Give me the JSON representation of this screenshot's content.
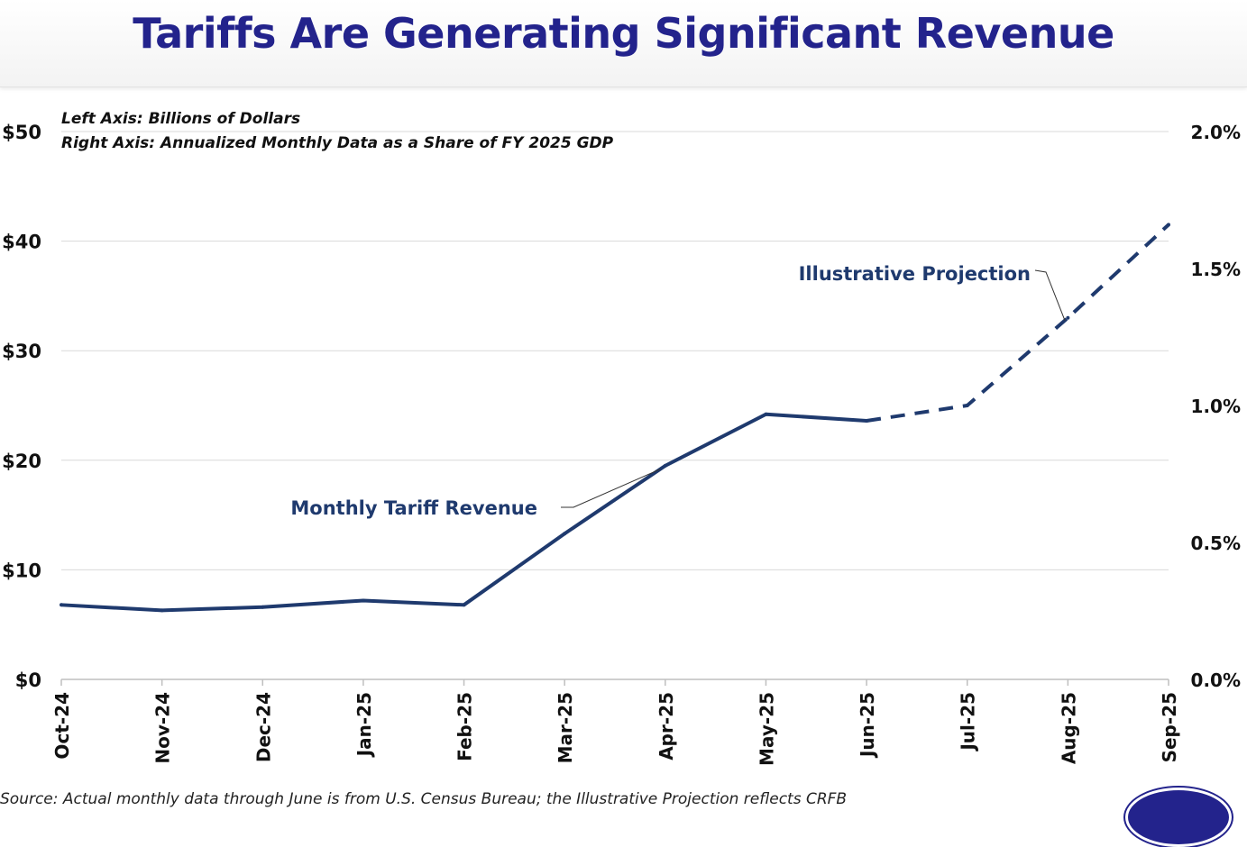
{
  "title": "Tariffs Are Generating Significant Revenue",
  "source_note": "Source: Actual monthly data through June is from U.S. Census Bureau; the Illustrative Projection reflects CRFB",
  "colors": {
    "title": "#23238c",
    "series": "#1f3a6e",
    "grid": "#d9d9d9",
    "axis_text": "#111111"
  },
  "chart_data": {
    "type": "line",
    "axis_notes": [
      "Left Axis: Billions of Dollars",
      "Right Axis: Annualized Monthly Data as a Share of FY 2025 GDP"
    ],
    "categories": [
      "Oct-24",
      "Nov-24",
      "Dec-24",
      "Jan-25",
      "Feb-25",
      "Mar-25",
      "Apr-25",
      "May-25",
      "Jun-25",
      "Jul-25",
      "Aug-25",
      "Sep-25"
    ],
    "y_left": {
      "range": [
        0,
        50
      ],
      "ticks": [
        0,
        10,
        20,
        30,
        40,
        50
      ],
      "tick_labels": [
        "$0",
        "$10",
        "$20",
        "$30",
        "$40",
        "$50"
      ]
    },
    "y_right": {
      "range": [
        0,
        2.0
      ],
      "ticks": [
        0,
        0.5,
        1.0,
        1.5,
        2.0
      ],
      "tick_labels": [
        "0.0%",
        "0.5%",
        "1.0%",
        "1.5%",
        "2.0%"
      ]
    },
    "grid": true,
    "series": [
      {
        "name": "Monthly Tariff Revenue",
        "style": "solid",
        "x": [
          "Oct-24",
          "Nov-24",
          "Dec-24",
          "Jan-25",
          "Feb-25",
          "Mar-25",
          "Apr-25",
          "May-25",
          "Jun-25"
        ],
        "values": [
          6.8,
          6.3,
          6.6,
          7.2,
          6.8,
          13.3,
          19.5,
          24.2,
          23.6
        ]
      },
      {
        "name": "Illustrative Projection",
        "style": "dashed",
        "x": [
          "Jun-25",
          "Jul-25",
          "Aug-25",
          "Sep-25"
        ],
        "values": [
          23.6,
          25.0,
          33.0,
          41.5
        ]
      }
    ]
  }
}
